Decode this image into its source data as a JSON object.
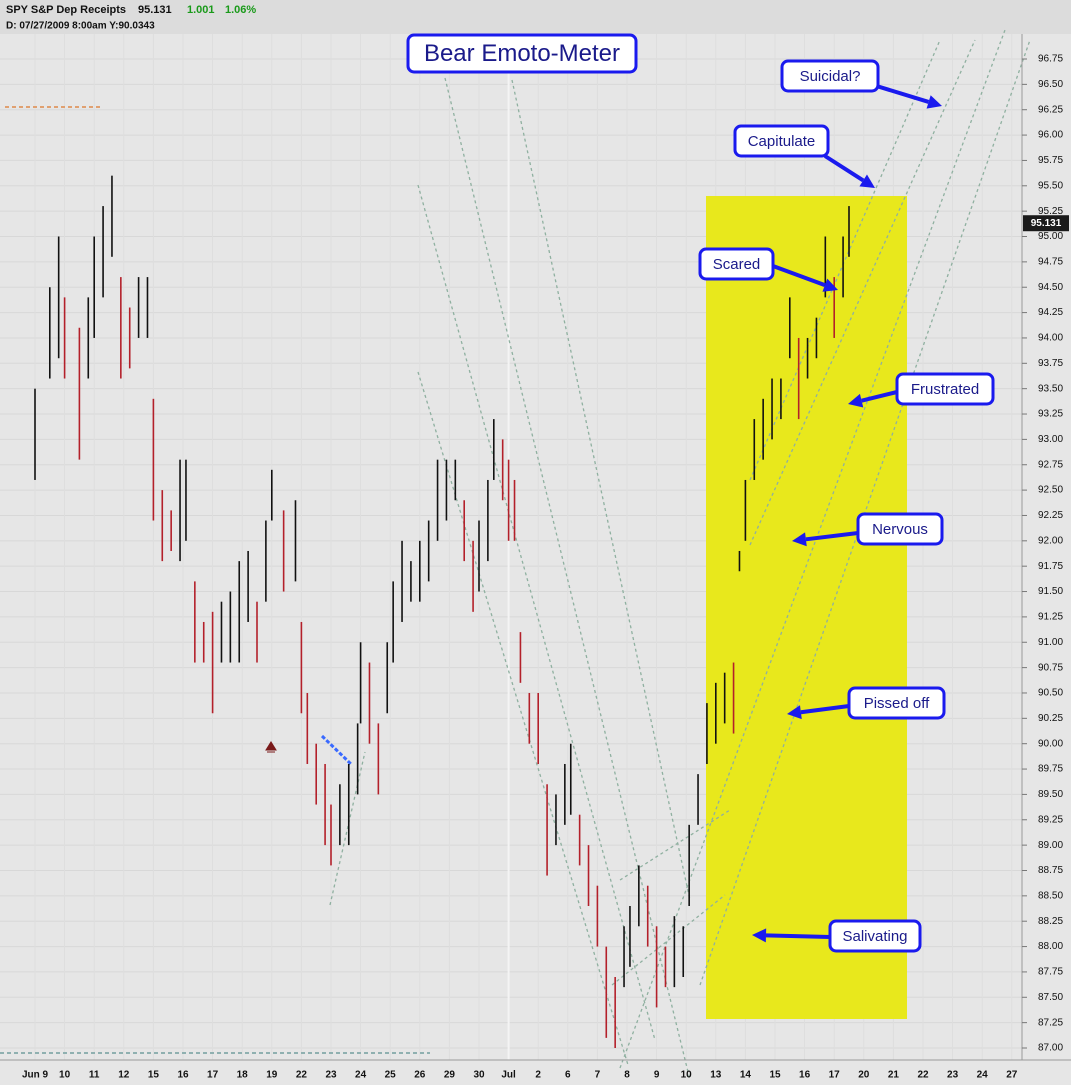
{
  "chart_data": {
    "type": "ohlc",
    "symbol": "SPY S&P Dep Receipts",
    "last": 95.131,
    "change": 1.001,
    "change_pct": "1.06%",
    "info": "D: 07/27/2009  8:00am  Y:90.0343",
    "title": "Bear Emoto-Meter",
    "annotations": [
      "Suicidal?",
      "Capitulate",
      "Scared",
      "Frustrated",
      "Nervous",
      "Pissed off",
      "Salivating"
    ],
    "categories": [
      "Jun 9",
      "10",
      "11",
      "12",
      "15",
      "16",
      "17",
      "18",
      "19",
      "22",
      "23",
      "24",
      "25",
      "26",
      "29",
      "30",
      "Jul",
      "2",
      "6",
      "7",
      "8",
      "9",
      "10",
      "13",
      "14",
      "15",
      "16",
      "17",
      "20",
      "21",
      "22",
      "23",
      "24",
      "27"
    ],
    "x": [
      0,
      0.5,
      0.8,
      1,
      1.5,
      1.8,
      2,
      2.3,
      2.6,
      2.9,
      3.2,
      3.5,
      3.8,
      4,
      4.3,
      4.6,
      4.9,
      5.1,
      5.4,
      5.7,
      6,
      6.3,
      6.6,
      6.9,
      7.2,
      7.5,
      7.8,
      8,
      8.4,
      8.8,
      9,
      9.2,
      9.5,
      9.8,
      10,
      10.3,
      10.6,
      10.9,
      11,
      11.3,
      11.6,
      11.9,
      12.1,
      12.4,
      12.7,
      13,
      13.3,
      13.6,
      13.9,
      14.2,
      14.5,
      14.8,
      15,
      15.3,
      15.5,
      15.8,
      16,
      16.2,
      16.4,
      16.7,
      17,
      17.3,
      17.6,
      17.9,
      18.1,
      18.4,
      18.7,
      19,
      19.3,
      19.6,
      19.9,
      20.1,
      20.4,
      20.7,
      21,
      21.3,
      21.6,
      21.9,
      22.1,
      22.4,
      22.7,
      23,
      23.3,
      23.6,
      23.8,
      24,
      24.3,
      24.6,
      24.9,
      25.2,
      25.5,
      25.8,
      26.1,
      26.4,
      26.7,
      27,
      27.3,
      27.5
    ],
    "high": [
      93.5,
      94.5,
      95,
      94.4,
      94.1,
      94.4,
      95,
      95.3,
      95.6,
      94.6,
      94.3,
      94.6,
      94.6,
      93.4,
      92.5,
      92.3,
      92.8,
      92.8,
      91.6,
      91.2,
      91.3,
      91.4,
      91.5,
      91.8,
      91.9,
      91.4,
      92.2,
      92.7,
      92.3,
      92.4,
      91.2,
      90.5,
      90,
      89.8,
      89.4,
      89.6,
      89.8,
      90.2,
      91,
      90.8,
      90.2,
      91,
      91.6,
      92,
      91.8,
      92,
      92.2,
      92.8,
      92.8,
      92.8,
      92.4,
      92,
      92.2,
      92.6,
      93.2,
      93,
      92.8,
      92.6,
      91.1,
      90.5,
      90.5,
      89.6,
      89.5,
      89.8,
      90,
      89.3,
      89,
      88.6,
      88,
      87.7,
      88.2,
      88.4,
      88.8,
      88.6,
      88.2,
      88,
      88.3,
      88.2,
      89.2,
      89.7,
      90.4,
      90.6,
      90.7,
      90.8,
      91.9,
      92.6,
      93.2,
      93.4,
      93.6,
      93.6,
      94.4,
      94,
      94,
      94.2,
      95,
      94.6,
      95,
      95.3
    ],
    "low": [
      92.6,
      93.6,
      93.8,
      93.6,
      92.8,
      93.6,
      94,
      94.4,
      94.8,
      93.6,
      93.7,
      94,
      94,
      92.2,
      91.8,
      91.9,
      91.8,
      92,
      90.8,
      90.8,
      90.3,
      90.8,
      90.8,
      90.8,
      91.2,
      90.8,
      91.4,
      92.2,
      91.5,
      91.6,
      90.3,
      89.8,
      89.4,
      89,
      88.8,
      89,
      89,
      89.5,
      90.2,
      90,
      89.5,
      90.3,
      90.8,
      91.2,
      91.4,
      91.4,
      91.6,
      92,
      92.2,
      92.4,
      91.8,
      91.3,
      91.5,
      91.8,
      92.6,
      92.4,
      92,
      92,
      90.6,
      90,
      89.8,
      88.7,
      89,
      89.2,
      89.3,
      88.8,
      88.4,
      88,
      87.1,
      87,
      87.6,
      87.8,
      88.2,
      88,
      87.4,
      87.6,
      87.6,
      87.7,
      88.4,
      89.2,
      89.8,
      90,
      90.2,
      90.1,
      91.7,
      92,
      92.6,
      92.8,
      93,
      93.2,
      93.8,
      93.2,
      93.6,
      93.8,
      94.4,
      94,
      94.4,
      94.8
    ],
    "colors": [
      "#b3202a",
      "#111111"
    ],
    "ylim": [
      87,
      96.75
    ],
    "yticks": [
      {
        "value": 87,
        "label": "87.00"
      },
      {
        "value": 87.25,
        "label": "87.25"
      },
      {
        "value": 87.5,
        "label": "87.50"
      },
      {
        "value": 87.75,
        "label": "87.75"
      },
      {
        "value": 88,
        "label": "88.00"
      },
      {
        "value": 88.25,
        "label": "88.25"
      },
      {
        "value": 88.5,
        "label": "88.50"
      },
      {
        "value": 88.75,
        "label": "88.75"
      },
      {
        "value": 89,
        "label": "89.00"
      },
      {
        "value": 89.25,
        "label": "89.25"
      },
      {
        "value": 89.5,
        "label": "89.50"
      },
      {
        "value": 89.75,
        "label": "89.75"
      },
      {
        "value": 90,
        "label": "90.00"
      },
      {
        "value": 90.25,
        "label": "90.25"
      },
      {
        "value": 90.5,
        "label": "90.50"
      },
      {
        "value": 90.75,
        "label": "90.75"
      },
      {
        "value": 91,
        "label": "91.00"
      },
      {
        "value": 91.25,
        "label": "91.25"
      },
      {
        "value": 91.5,
        "label": "91.50"
      },
      {
        "value": 91.75,
        "label": "91.75"
      },
      {
        "value": 92,
        "label": "92.00"
      },
      {
        "value": 92.25,
        "label": "92.25"
      },
      {
        "value": 92.5,
        "label": "92.50"
      },
      {
        "value": 92.75,
        "label": "92.75"
      },
      {
        "value": 93,
        "label": "93.00"
      },
      {
        "value": 93.25,
        "label": "93.25"
      },
      {
        "value": 93.5,
        "label": "93.50"
      },
      {
        "value": 93.75,
        "label": "93.75"
      },
      {
        "value": 94,
        "label": "94.00"
      },
      {
        "value": 94.25,
        "label": "94.25"
      },
      {
        "value": 94.5,
        "label": "94.50"
      },
      {
        "value": 94.75,
        "label": "94.75"
      },
      {
        "value": 95,
        "label": "95.00"
      },
      {
        "value": 95.25,
        "label": "95.25"
      },
      {
        "value": 95.5,
        "label": "95.50"
      },
      {
        "value": 95.75,
        "label": "95.75"
      },
      {
        "value": 96,
        "label": "96.00"
      },
      {
        "value": 96.25,
        "label": "96.25"
      },
      {
        "value": 96.5,
        "label": "96.50"
      },
      {
        "value": 96.75,
        "label": "96.75"
      }
    ],
    "grid": true
  }
}
